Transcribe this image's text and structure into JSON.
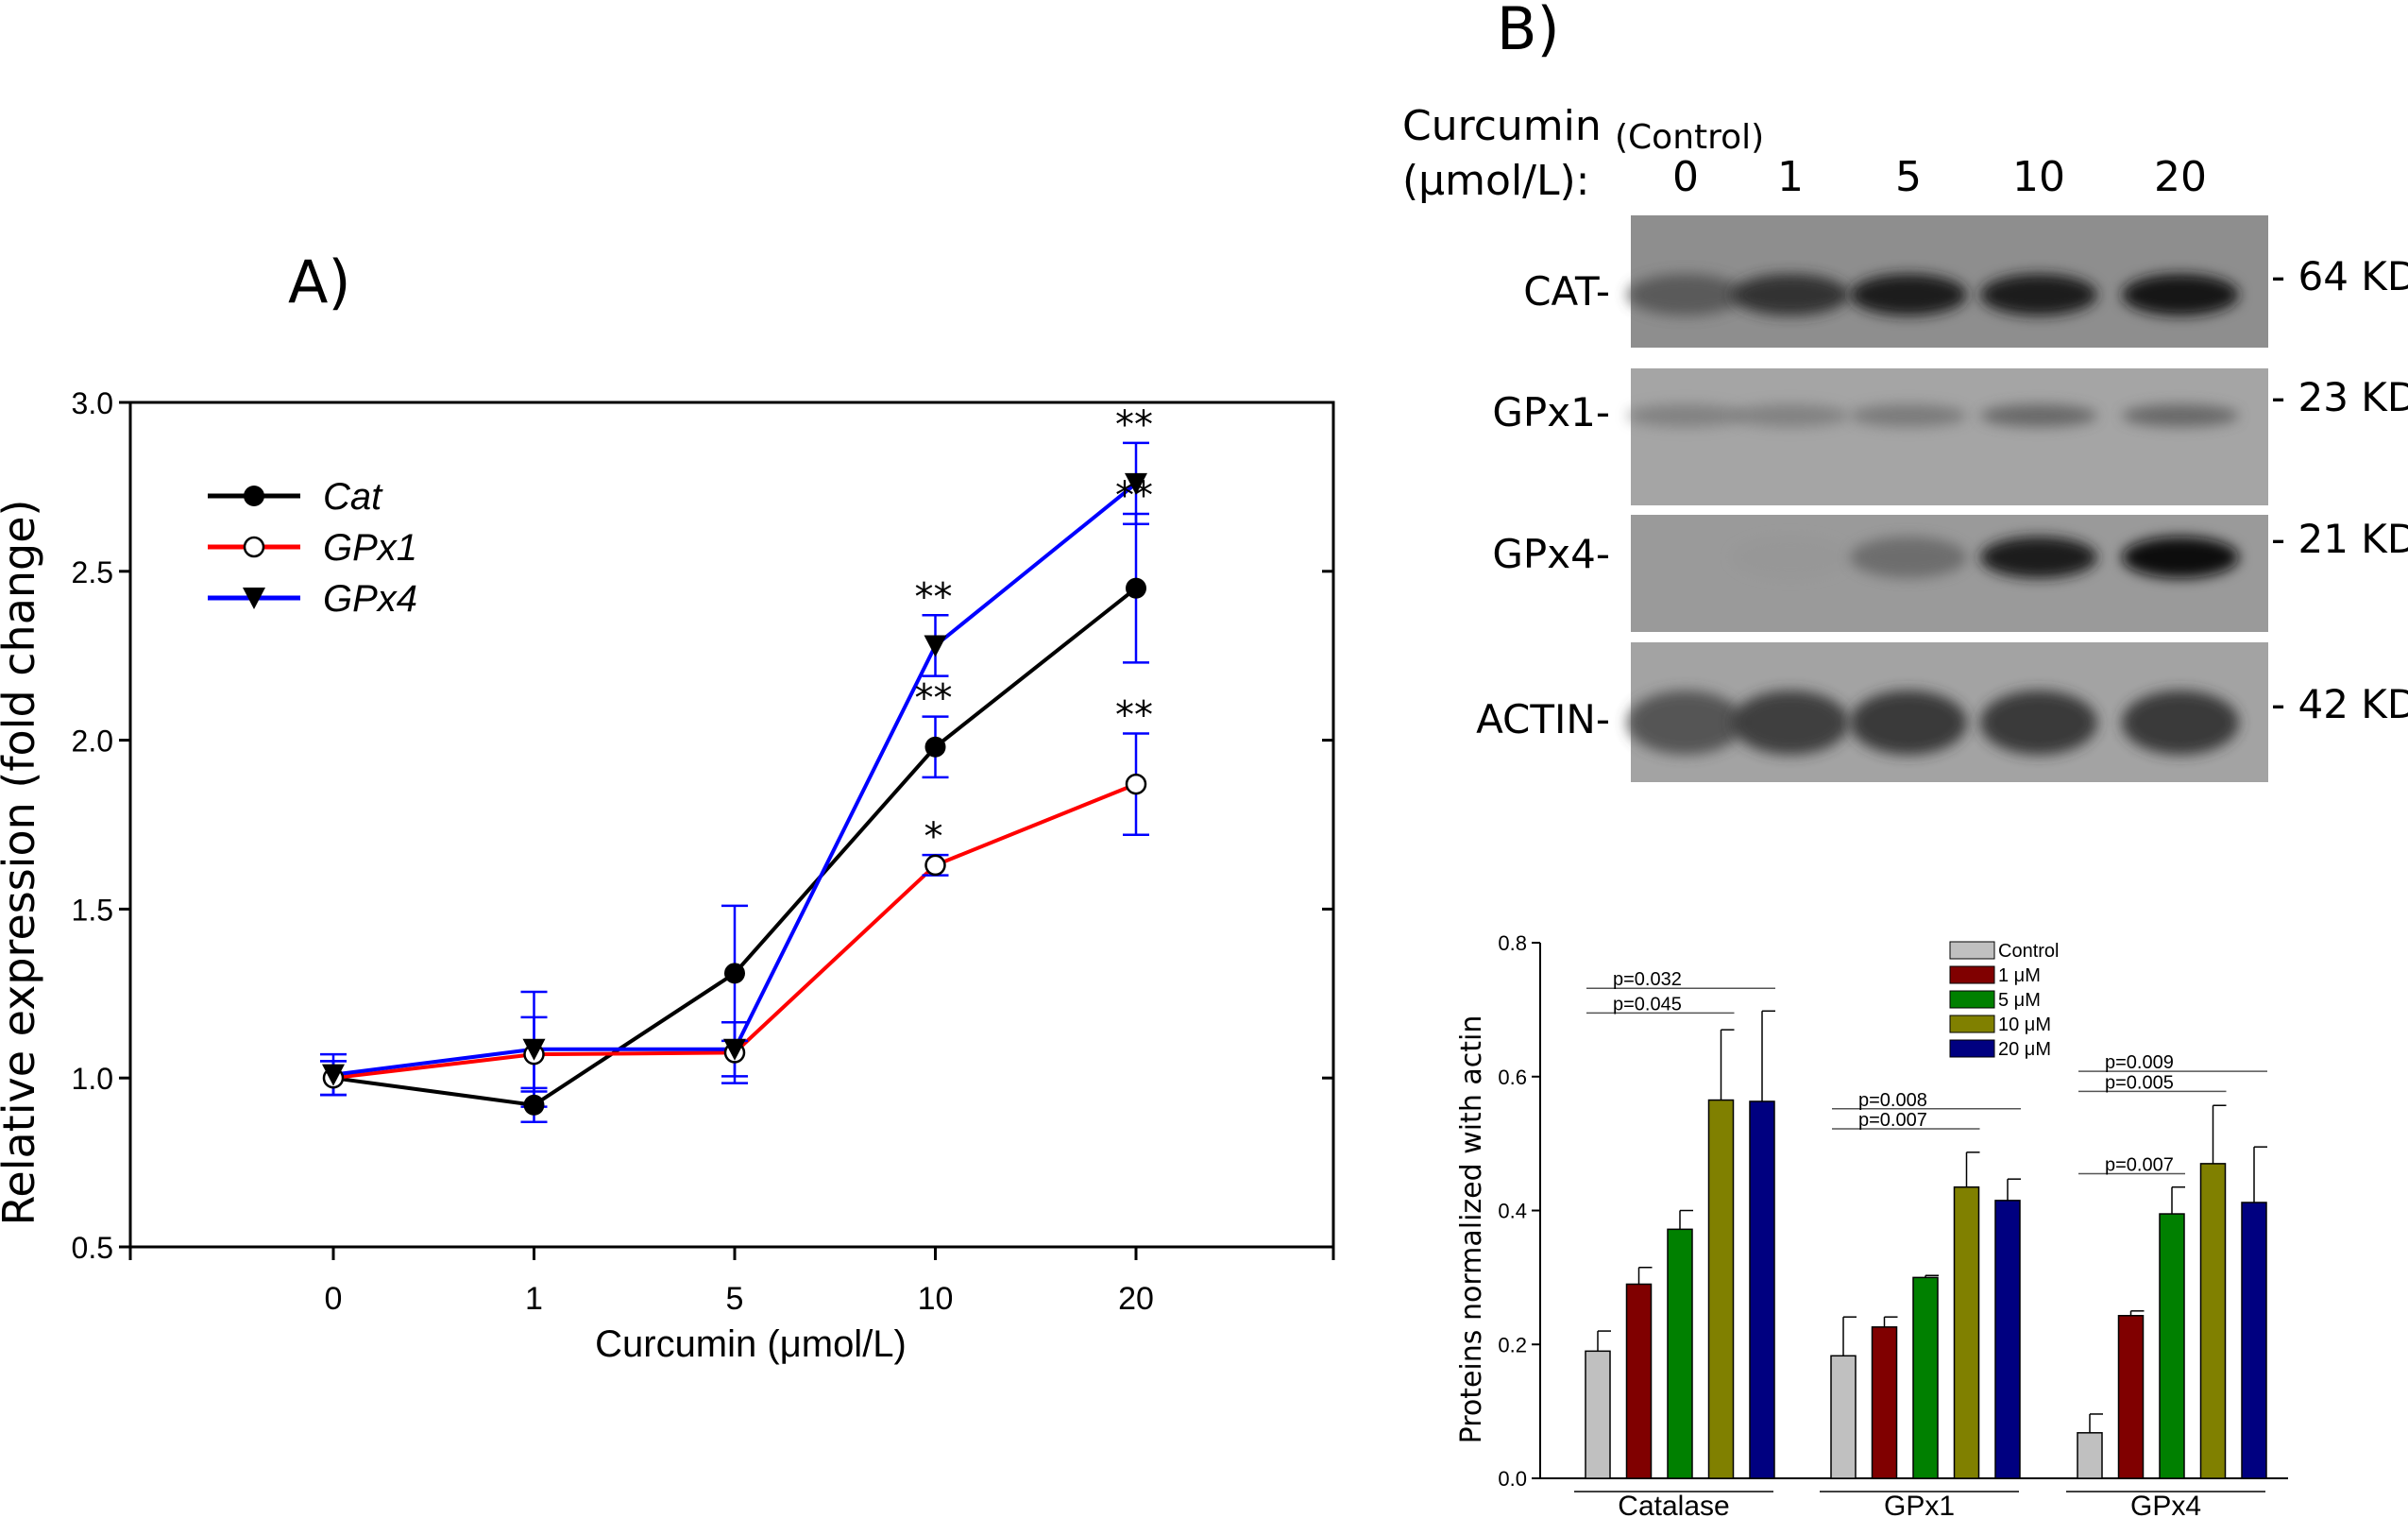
{
  "panel_a": {
    "label": "A)"
  },
  "panel_b": {
    "label": "B)",
    "curcumin_label_1": "Curcumin",
    "curcumin_label_2": "(μmol/L):",
    "control_label": "(Control)",
    "lanes": [
      "0",
      "1",
      "5",
      "10",
      "20"
    ],
    "blots": [
      {
        "name": "CAT-",
        "size": "- 64 KD",
        "band_darkness": [
          0.55,
          0.75,
          0.85,
          0.88,
          0.9
        ]
      },
      {
        "name": "GPx1-",
        "size": "- 23 KD",
        "band_darkness": [
          0.35,
          0.35,
          0.4,
          0.5,
          0.5
        ]
      },
      {
        "name": "GPx4-",
        "size": "- 21 KD",
        "band_darkness": [
          0.0,
          0.05,
          0.45,
          0.85,
          0.95
        ]
      },
      {
        "name": "ACTIN-",
        "size": "- 42 KD",
        "band_darkness": [
          0.6,
          0.7,
          0.72,
          0.72,
          0.72
        ]
      }
    ]
  },
  "chart_data": [
    {
      "type": "line",
      "xlabel": "Curcumin (μmol/L)",
      "ylabel": "Relative expression (fold change)",
      "categories": [
        "0",
        "1",
        "5",
        "10",
        "20"
      ],
      "ylim": [
        0.5,
        3.0
      ],
      "yticks": [
        "0.5",
        "1.0",
        "1.5",
        "2.0",
        "2.5",
        "3.0"
      ],
      "grid": false,
      "legend": "top-left",
      "error_bar_color": "#0000ff",
      "series": [
        {
          "name": "Cat",
          "color": "#000000",
          "marker": "filled-circle",
          "values": [
            1.0,
            0.92,
            1.31,
            1.98,
            2.45
          ],
          "errors": [
            0.05,
            0.05,
            0.2,
            0.09,
            0.22
          ],
          "significance": [
            "",
            "",
            "",
            "**",
            "**"
          ]
        },
        {
          "name": "GPx1",
          "color": "#ff0000",
          "marker": "open-circle",
          "values": [
            1.0,
            1.07,
            1.075,
            1.63,
            1.87
          ],
          "errors": [
            0.05,
            0.11,
            0.09,
            0.03,
            0.15
          ],
          "significance": [
            "",
            "",
            "",
            "*",
            "**"
          ]
        },
        {
          "name": "GPx4",
          "color": "#0000ff",
          "marker": "filled-triangle-down",
          "values": [
            1.01,
            1.085,
            1.085,
            2.28,
            2.76
          ],
          "errors": [
            0.06,
            0.17,
            0.08,
            0.09,
            0.12
          ],
          "significance": [
            "",
            "",
            "",
            "**",
            "**"
          ]
        }
      ]
    },
    {
      "type": "bar",
      "ylabel": "Proteins normalized with actin",
      "categories": [
        "Catalase",
        "GPx1",
        "GPx4"
      ],
      "ylim": [
        0.0,
        0.8
      ],
      "yticks": [
        "0.0",
        "0.2",
        "0.4",
        "0.6",
        "0.8"
      ],
      "legend": "top-right",
      "series": [
        {
          "name": "Control",
          "color": "#c0c0c0",
          "values": [
            0.19,
            0.183,
            0.068
          ],
          "errors": [
            0.03,
            0.058,
            0.028
          ]
        },
        {
          "name": "1 μM",
          "color": "#800000",
          "values": [
            0.29,
            0.226,
            0.243
          ],
          "errors": [
            0.025,
            0.015,
            0.007
          ]
        },
        {
          "name": "5 μM",
          "color": "#008000",
          "values": [
            0.372,
            0.3,
            0.395
          ],
          "errors": [
            0.028,
            0.003,
            0.04
          ]
        },
        {
          "name": "10 μM",
          "color": "#808000",
          "values": [
            0.565,
            0.435,
            0.47
          ],
          "errors": [
            0.105,
            0.052,
            0.087
          ]
        },
        {
          "name": "20 μM",
          "color": "#000080",
          "values": [
            0.563,
            0.415,
            0.412
          ],
          "errors": [
            0.135,
            0.032,
            0.083
          ]
        }
      ],
      "comparisons": [
        {
          "group": 0,
          "from": 0,
          "to": 4,
          "label": "p=0.032",
          "y": 0.732
        },
        {
          "group": 0,
          "from": 0,
          "to": 3,
          "label": "p=0.045",
          "y": 0.695
        },
        {
          "group": 1,
          "from": 0,
          "to": 4,
          "label": "p=0.008",
          "y": 0.552
        },
        {
          "group": 1,
          "from": 0,
          "to": 3,
          "label": "p=0.007",
          "y": 0.522
        },
        {
          "group": 2,
          "from": 0,
          "to": 4,
          "label": "p=0.009",
          "y": 0.608
        },
        {
          "group": 2,
          "from": 0,
          "to": 3,
          "label": "p=0.005",
          "y": 0.578
        },
        {
          "group": 2,
          "from": 0,
          "to": 2,
          "label": "p=0.007",
          "y": 0.455
        }
      ]
    }
  ]
}
